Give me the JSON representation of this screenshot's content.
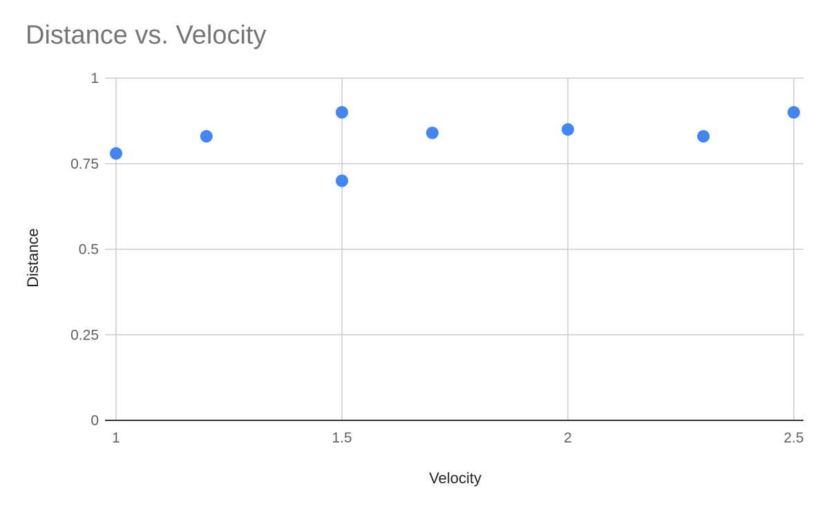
{
  "chart_data": {
    "type": "scatter",
    "title": "Distance vs. Velocity",
    "xlabel": "Velocity",
    "ylabel": "Distance",
    "xlim": [
      1,
      2.5
    ],
    "ylim": [
      0,
      1
    ],
    "x_ticks": [
      1,
      1.5,
      2,
      2.5
    ],
    "x_tick_labels": [
      "1",
      "1.5",
      "2",
      "2.5"
    ],
    "y_ticks": [
      0,
      0.25,
      0.5,
      0.75,
      1
    ],
    "y_tick_labels": [
      "0",
      "0.25",
      "0.5",
      "0.75",
      "1"
    ],
    "grid": true,
    "legend": "none",
    "series": [
      {
        "color": "#4285f4",
        "points": [
          {
            "x": 1.0,
            "y": 0.78
          },
          {
            "x": 1.2,
            "y": 0.83
          },
          {
            "x": 1.5,
            "y": 0.9
          },
          {
            "x": 1.5,
            "y": 0.7
          },
          {
            "x": 1.7,
            "y": 0.84
          },
          {
            "x": 2.0,
            "y": 0.85
          },
          {
            "x": 2.3,
            "y": 0.83
          },
          {
            "x": 2.5,
            "y": 0.9
          }
        ]
      }
    ]
  }
}
